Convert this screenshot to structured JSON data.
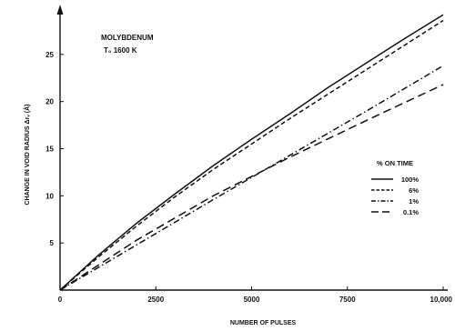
{
  "chart_data": {
    "type": "line",
    "title": "",
    "xlabel": "NUMBER OF PULSES",
    "ylabel": "CHANGE IN VOID RADIUS Δrᵥ (Å)",
    "xlim": [
      0,
      10000
    ],
    "ylim": [
      0,
      30
    ],
    "xticks": [
      0,
      2500,
      5000,
      7500,
      10000
    ],
    "xtick_labels": [
      "0",
      "2500",
      "5000",
      "7500",
      "10,000"
    ],
    "yticks": [
      5,
      10,
      15,
      20,
      25
    ],
    "ytick_labels": [
      "5",
      "10",
      "15",
      "20",
      "25"
    ],
    "grid": false,
    "annotation": {
      "line1": "MOLYBDENUM",
      "line2": "T₀ 1600  K"
    },
    "legend": {
      "title": "% ON TIME",
      "placement": "right"
    },
    "series": [
      {
        "name": "100%",
        "dash": "solid",
        "x": [
          0,
          1000,
          2000,
          3000,
          4000,
          5000,
          6000,
          7000,
          8000,
          9000,
          10000
        ],
        "y": [
          0,
          3.7,
          7.1,
          10.2,
          13.2,
          16.0,
          18.7,
          21.5,
          24.1,
          26.7,
          29.2
        ]
      },
      {
        "name": "6%",
        "dash": "dashed",
        "x": [
          0,
          1000,
          2000,
          3000,
          4000,
          5000,
          6000,
          7000,
          8000,
          9000,
          10000
        ],
        "y": [
          0,
          3.5,
          6.8,
          9.9,
          12.8,
          15.5,
          18.2,
          20.8,
          23.4,
          26.0,
          28.6
        ]
      },
      {
        "name": "1%",
        "dash": "dashdot",
        "x": [
          0,
          2000,
          4000,
          6000,
          8000,
          10000
        ],
        "y": [
          0,
          4.8,
          9.6,
          14.3,
          19.0,
          23.8
        ]
      },
      {
        "name": "0.1%",
        "dash": "longdash",
        "x": [
          0,
          2000,
          4000,
          6000,
          8000,
          10000
        ],
        "y": [
          0,
          5.3,
          10.0,
          14.1,
          18.0,
          21.8
        ]
      }
    ]
  }
}
